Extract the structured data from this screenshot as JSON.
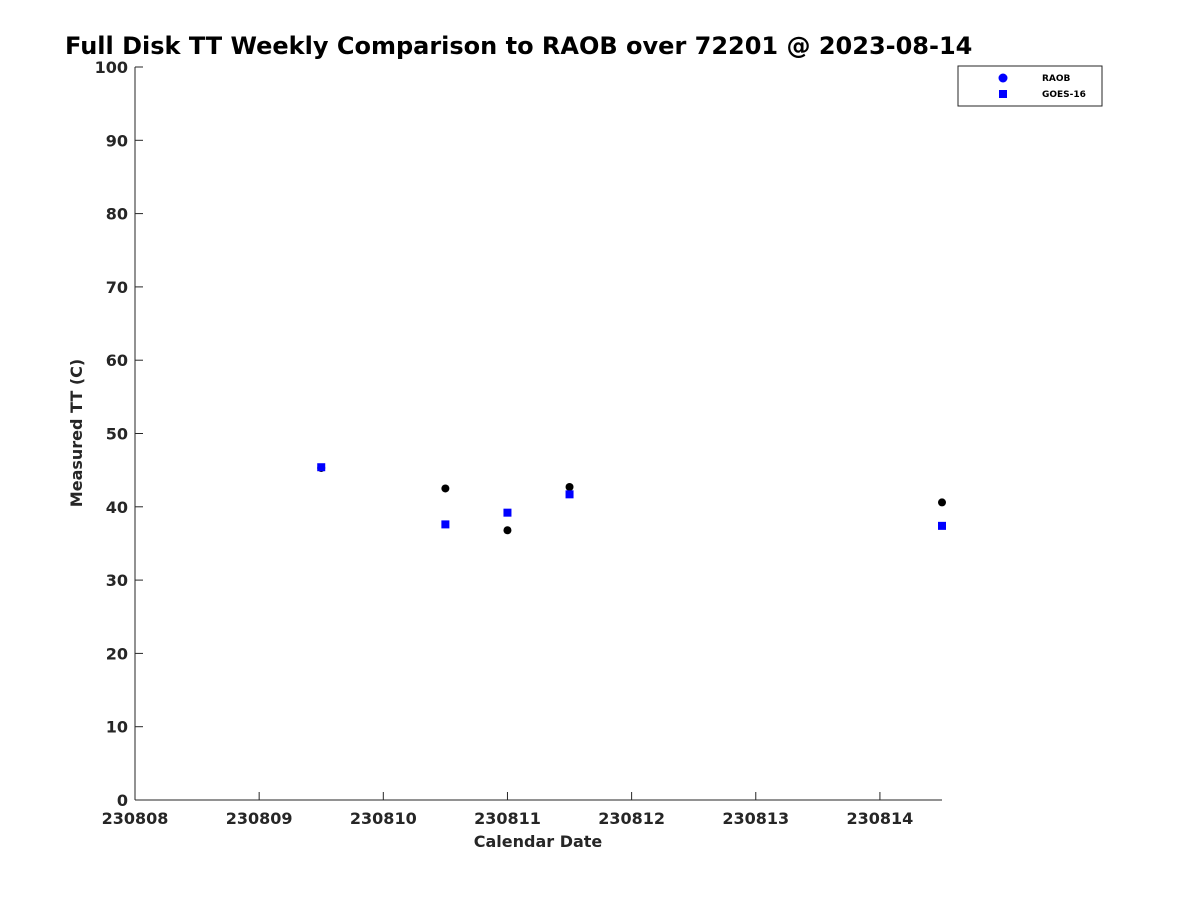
{
  "chart_data": {
    "type": "scatter",
    "title": "Full Disk TT Weekly Comparison to RAOB over 72201 @ 2023-08-14",
    "xlabel": "Calendar Date",
    "ylabel": "Measured TT (C)",
    "xlim": [
      "230808",
      "230814.5"
    ],
    "ylim": [
      0,
      100
    ],
    "x_tick_labels": [
      "230808",
      "230809",
      "230810",
      "230811",
      "230812",
      "230813",
      "230814"
    ],
    "y_tick_labels": [
      "0",
      "10",
      "20",
      "30",
      "40",
      "50",
      "60",
      "70",
      "80",
      "90",
      "100"
    ],
    "legend_position": "top-right",
    "series": [
      {
        "name": "RAOB",
        "marker": "circle",
        "color": "#000000",
        "legend_color": "#0000ff",
        "points": [
          {
            "x": "230809.5",
            "y": 45.3
          },
          {
            "x": "230810.5",
            "y": 42.5
          },
          {
            "x": "230811.0",
            "y": 36.8
          },
          {
            "x": "230811.5",
            "y": 42.7
          },
          {
            "x": "230814.5",
            "y": 40.6
          }
        ]
      },
      {
        "name": "GOES-16",
        "marker": "square",
        "color": "#0000ff",
        "legend_color": "#0000ff",
        "points": [
          {
            "x": "230809.5",
            "y": 45.4
          },
          {
            "x": "230810.5",
            "y": 37.6
          },
          {
            "x": "230811.0",
            "y": 39.2
          },
          {
            "x": "230811.5",
            "y": 41.7
          },
          {
            "x": "230814.5",
            "y": 37.4
          }
        ]
      }
    ]
  }
}
